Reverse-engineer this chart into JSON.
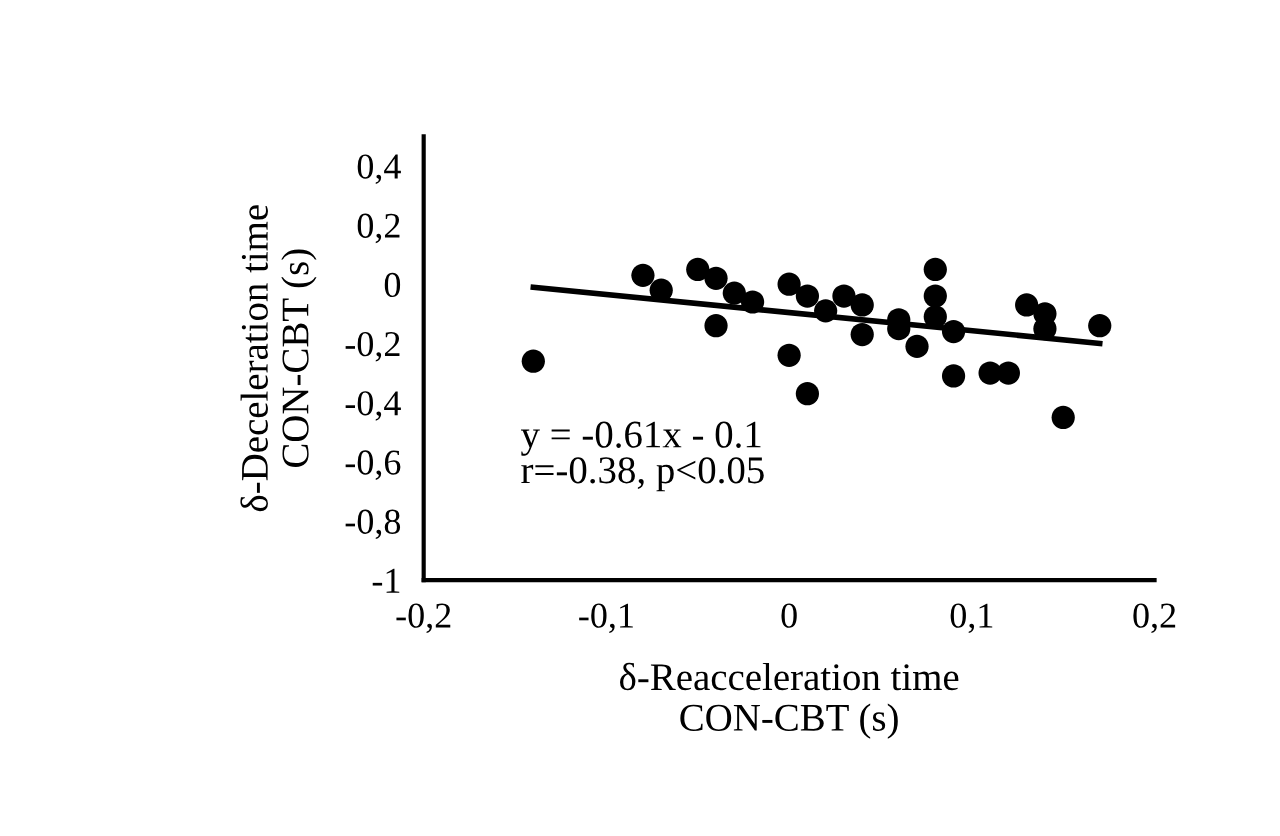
{
  "chart_data": {
    "type": "scatter",
    "xlabel": "δ-Reacceleration time\nCON-CBT (s)",
    "ylabel": "δ-Deceleration time\nCON-CBT (s)",
    "xlim": [
      -0.2,
      0.2
    ],
    "ylim": [
      -1,
      0.5
    ],
    "xticks": [
      {
        "value": -0.2,
        "label": "-0,2"
      },
      {
        "value": -0.1,
        "label": "-0,1"
      },
      {
        "value": 0,
        "label": "0"
      },
      {
        "value": 0.1,
        "label": "0,1"
      },
      {
        "value": 0.2,
        "label": "0,2"
      }
    ],
    "yticks": [
      {
        "value": -1,
        "label": "-1"
      },
      {
        "value": -0.8,
        "label": "-0,8"
      },
      {
        "value": -0.6,
        "label": "-0,6"
      },
      {
        "value": -0.4,
        "label": "-0,4"
      },
      {
        "value": -0.2,
        "label": "-0,2"
      },
      {
        "value": 0,
        "label": "0"
      },
      {
        "value": 0.2,
        "label": "0,2"
      },
      {
        "value": 0.4,
        "label": "0,4"
      }
    ],
    "grid": false,
    "series": [
      {
        "marker": "circle",
        "color": "#000000",
        "x": [
          -0.14,
          -0.08,
          -0.07,
          -0.05,
          -0.04,
          -0.04,
          -0.03,
          -0.02,
          0.0,
          0.0,
          0.01,
          0.01,
          0.02,
          0.03,
          0.04,
          0.04,
          0.06,
          0.06,
          0.07,
          0.08,
          0.08,
          0.08,
          0.09,
          0.09,
          0.11,
          0.12,
          0.13,
          0.14,
          0.14,
          0.15,
          0.17
        ],
        "values": [
          -0.26,
          0.03,
          -0.02,
          0.05,
          0.02,
          -0.14,
          -0.03,
          -0.06,
          0.0,
          -0.24,
          -0.04,
          -0.37,
          -0.09,
          -0.04,
          -0.07,
          -0.17,
          -0.12,
          -0.15,
          -0.21,
          0.05,
          -0.04,
          -0.11,
          -0.16,
          -0.31,
          -0.3,
          -0.3,
          -0.07,
          -0.1,
          -0.15,
          -0.45,
          -0.14
        ]
      },
      {
        "type": "line",
        "color": "#000000",
        "x": [
          -0.14,
          0.17
        ],
        "values": [
          -0.01,
          -0.2
        ]
      }
    ],
    "annotations": [
      "y = -0.61x - 0.1",
      "r=-0.38, p<0.05"
    ]
  }
}
